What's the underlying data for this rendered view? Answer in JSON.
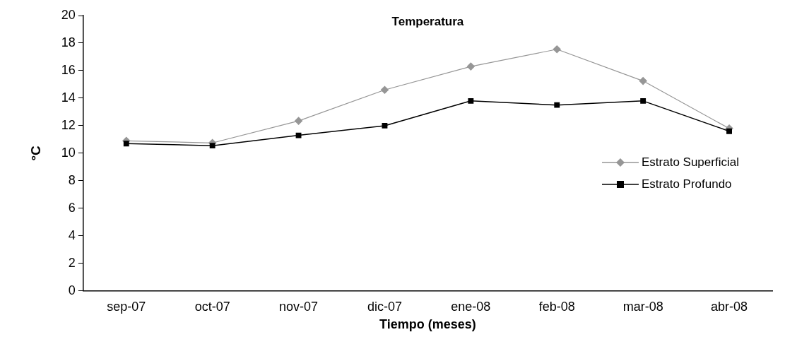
{
  "chart_data": {
    "type": "line",
    "title": "Temperatura",
    "xlabel": "Tiempo (meses)",
    "ylabel": "°C",
    "categories": [
      "sep-07",
      "oct-07",
      "nov-07",
      "dic-07",
      "ene-08",
      "feb-08",
      "mar-08",
      "abr-08"
    ],
    "series": [
      {
        "name": "Estrato Superficial",
        "color": "#969696",
        "marker": "diamond",
        "values": [
          10.9,
          10.75,
          12.35,
          14.6,
          16.3,
          17.55,
          15.25,
          11.8
        ]
      },
      {
        "name": "Estrato Profundo",
        "color": "#000000",
        "marker": "square",
        "values": [
          10.7,
          10.55,
          11.3,
          12.0,
          13.8,
          13.5,
          13.8,
          11.6
        ]
      }
    ],
    "ylim": [
      0,
      20
    ],
    "yticks": [
      0,
      2,
      4,
      6,
      8,
      10,
      12,
      14,
      16,
      18,
      20
    ],
    "grid": false,
    "legend": "right"
  }
}
